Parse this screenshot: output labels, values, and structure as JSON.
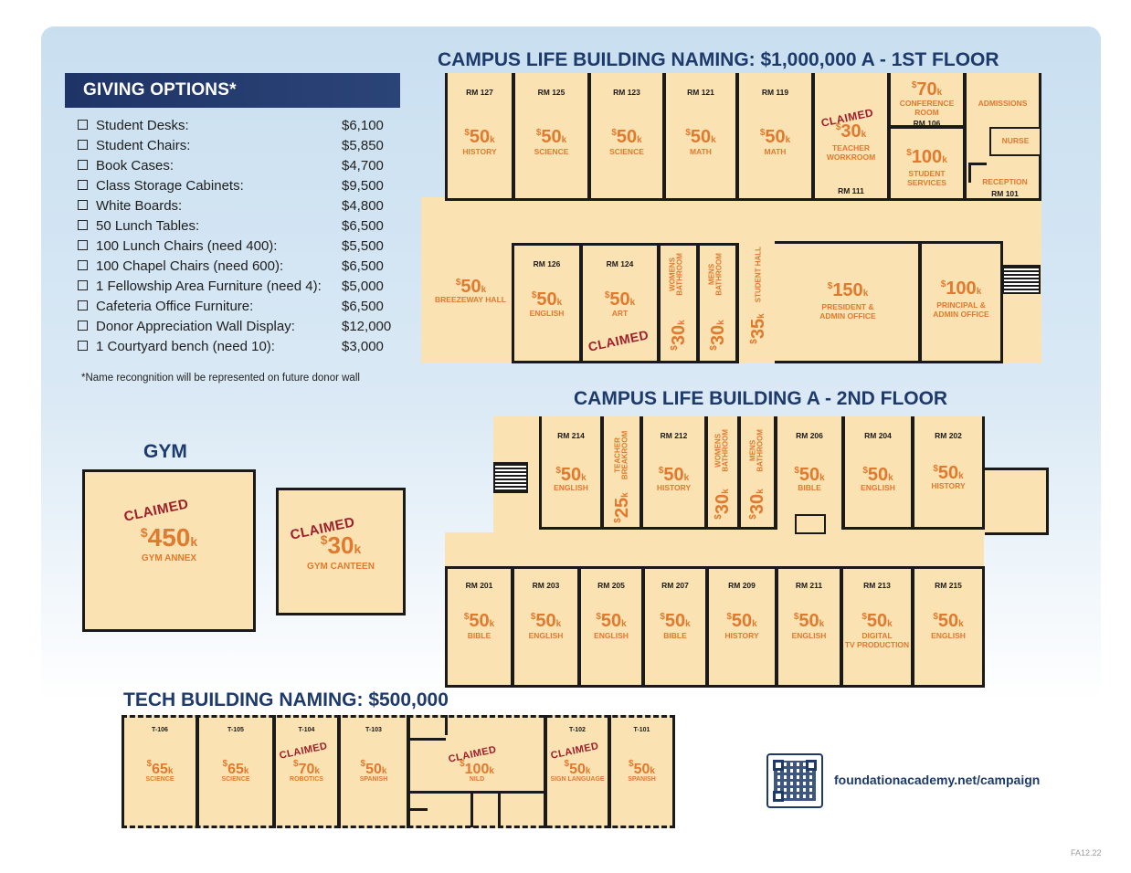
{
  "titles": {
    "first_floor": "CAMPUS LIFE BUILDING NAMING: $1,000,000 A  -  1ST FLOOR",
    "second_floor": "CAMPUS LIFE BUILDING A  -  2ND FLOOR",
    "gym": "GYM",
    "tech": "TECH BUILDING NAMING: $500,000"
  },
  "giving": {
    "header": "GIVING OPTIONS*",
    "options": [
      {
        "label": "Student Desks:",
        "amount": "$6,100"
      },
      {
        "label": "Student Chairs:",
        "amount": "$5,850"
      },
      {
        "label": "Book Cases:",
        "amount": "$4,700"
      },
      {
        "label": "Class Storage Cabinets:",
        "amount": "$9,500"
      },
      {
        "label": "White Boards:",
        "amount": "$4,800"
      },
      {
        "label": "50 Lunch Tables:",
        "amount": "$6,500"
      },
      {
        "label": "100 Lunch Chairs (need 400):",
        "amount": "$5,500"
      },
      {
        "label": "100 Chapel Chairs (need 600):",
        "amount": "$6,500"
      },
      {
        "label": "1 Fellowship Area Furniture (need 4):",
        "amount": "$5,000"
      },
      {
        "label": "Cafeteria Office Furniture:",
        "amount": "$6,500"
      },
      {
        "label": "Donor Appreciation Wall Display:",
        "amount": "$12,000"
      },
      {
        "label": "1 Courtyard bench (need 10):",
        "amount": "$3,000"
      }
    ],
    "footnote": "*Name recongnition will be represented on future donor wall"
  },
  "claimed_text": "CLAIMED",
  "first_floor": {
    "top_rooms": [
      {
        "rm": "RM 127",
        "price": "50",
        "subject": "HISTORY"
      },
      {
        "rm": "RM 125",
        "price": "50",
        "subject": "SCIENCE"
      },
      {
        "rm": "RM 123",
        "price": "50",
        "subject": "SCIENCE"
      },
      {
        "rm": "RM 121",
        "price": "50",
        "subject": "MATH"
      },
      {
        "rm": "RM 119",
        "price": "50",
        "subject": "MATH"
      }
    ],
    "teacher_workroom": {
      "price": "30",
      "subject": "TEACHER\nWORKROOM",
      "rm": "RM 111"
    },
    "conference": {
      "price": "70",
      "subject": "CONFERENCE\nROOM",
      "rm": "RM 106"
    },
    "student_services": {
      "price": "100",
      "subject": "STUDENT\nSERVICES"
    },
    "admissions": "ADMISSIONS",
    "nurse": "NURSE",
    "reception": {
      "label": "RECEPTION",
      "rm": "RM 101"
    },
    "breezeway": {
      "price": "50",
      "subject": "BREEZEWAY HALL"
    },
    "rm126": {
      "rm": "RM 126",
      "price": "50",
      "subject": "ENGLISH"
    },
    "rm124": {
      "rm": "RM 124",
      "price": "50",
      "subject": "ART"
    },
    "womens_bath": {
      "label": "WOMENS\nBATHROOM",
      "price": "30"
    },
    "mens_bath": {
      "label": "MENS\nBATHROOM",
      "price": "30"
    },
    "student_hall": {
      "label": "STUDENT HALL",
      "price": "35"
    },
    "president": {
      "price": "150",
      "subject": "PRESIDENT &\nADMIN OFFICE"
    },
    "principal": {
      "price": "100",
      "subject": "PRINCIPAL &\nADMIN OFFICE"
    }
  },
  "second_floor": {
    "rm214": {
      "rm": "RM 214",
      "price": "50",
      "subject": "ENGLISH"
    },
    "teacher_break": {
      "label": "TEACHER\nBREAKROOM",
      "price": "25"
    },
    "rm212": {
      "rm": "RM 212",
      "price": "50",
      "subject": "HISTORY"
    },
    "womens_bath": {
      "label": "WOMENS\nBATHROOM",
      "price": "30"
    },
    "mens_bath": {
      "label": "MENS\nBATHROOM",
      "price": "30"
    },
    "rm206": {
      "rm": "RM 206",
      "price": "50",
      "subject": "BIBLE"
    },
    "rm204": {
      "rm": "RM 204",
      "price": "50",
      "subject": "ENGLISH"
    },
    "rm202": {
      "rm": "RM 202",
      "price": "50",
      "subject": "HISTORY"
    },
    "bottom_rooms": [
      {
        "rm": "RM 201",
        "price": "50",
        "subject": "BIBLE"
      },
      {
        "rm": "RM 203",
        "price": "50",
        "subject": "ENGLISH"
      },
      {
        "rm": "RM 205",
        "price": "50",
        "subject": "ENGLISH"
      },
      {
        "rm": "RM 207",
        "price": "50",
        "subject": "BIBLE"
      },
      {
        "rm": "RM 209",
        "price": "50",
        "subject": "HISTORY"
      },
      {
        "rm": "RM 211",
        "price": "50",
        "subject": "ENGLISH"
      },
      {
        "rm": "RM 213",
        "price": "50",
        "subject": "DIGITAL\nTV PRODUCTION"
      },
      {
        "rm": "RM 215",
        "price": "50",
        "subject": "ENGLISH"
      }
    ]
  },
  "gym": {
    "annex": {
      "price": "450",
      "subject": "GYM ANNEX"
    },
    "canteen": {
      "price": "30",
      "subject": "GYM CANTEEN"
    }
  },
  "tech": {
    "rooms": [
      {
        "rm": "T-106",
        "price": "65",
        "subject": "SCIENCE"
      },
      {
        "rm": "T-105",
        "price": "65",
        "subject": "SCIENCE"
      },
      {
        "rm": "T-104",
        "price": "70",
        "subject": "ROBOTICS"
      },
      {
        "rm": "T-103",
        "price": "50",
        "subject": "SPANISH"
      },
      {
        "rm": "",
        "price": "100",
        "subject": "NILD"
      },
      {
        "rm": "T-102",
        "price": "50",
        "subject": "SIGN LANGUAGE"
      },
      {
        "rm": "T-101",
        "price": "50",
        "subject": "SPANISH"
      }
    ]
  },
  "footer": {
    "url": "foundationacademy.net/campaign",
    "code": "FA12.22"
  },
  "colors": {
    "navy": "#1d3a6b",
    "orange": "#e07a2e",
    "claimed": "#9e1f2a",
    "floor": "#fbe2b3"
  }
}
